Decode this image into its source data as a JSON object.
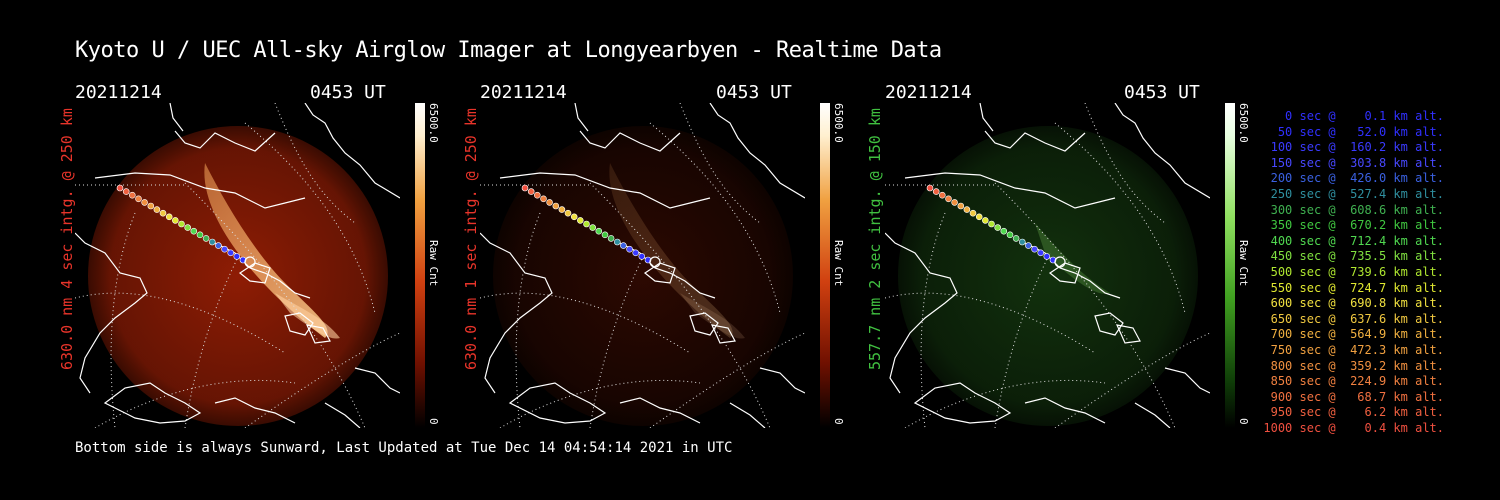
{
  "title": "Kyoto U / UEC All-sky Airglow Imager at Longyearbyen - Realtime Data",
  "footer": "Bottom side is always Sunward, Last Updated at Tue Dec 14 04:54:14 2021 in UTC",
  "panels": [
    {
      "date": "20211214",
      "time": "0453 UT",
      "ylabel": "630.0 nm 4 sec intg. @ 250 km",
      "ylabel_color": "#e8342a",
      "cbar_max": "6500.0",
      "cbar_label": "Raw Cnt",
      "cbar_min": "0",
      "glow": "red",
      "intensity": 0.85
    },
    {
      "date": "20211214",
      "time": "0453 UT",
      "ylabel": "630.0 nm 1 sec intg. @ 250 km",
      "ylabel_color": "#e8342a",
      "cbar_max": "6500.0",
      "cbar_label": "Raw Cnt",
      "cbar_min": "0",
      "glow": "red",
      "intensity": 0.2
    },
    {
      "date": "20211214",
      "time": "0453 UT",
      "ylabel": "557.7 nm 2 sec intg. @ 150 km",
      "ylabel_color": "#40c040",
      "cbar_max": "6500.0",
      "cbar_label": "Raw Cnt",
      "cbar_min": "0",
      "glow": "green",
      "intensity": 0.35
    }
  ],
  "legend": [
    {
      "text": "0 sec @    0.1 km alt.",
      "color": "#3030ff"
    },
    {
      "text": "50 sec @   52.0 km alt.",
      "color": "#3030ff"
    },
    {
      "text": "100 sec @  160.2 km alt.",
      "color": "#3a3aff"
    },
    {
      "text": "150 sec @  303.8 km alt.",
      "color": "#4848ff"
    },
    {
      "text": "200 sec @  426.0 km alt.",
      "color": "#3a60e0"
    },
    {
      "text": "250 sec @  527.4 km alt.",
      "color": "#2f8f9f"
    },
    {
      "text": "300 sec @  608.6 km alt.",
      "color": "#3fb050"
    },
    {
      "text": "350 sec @  670.2 km alt.",
      "color": "#40c840"
    },
    {
      "text": "400 sec @  712.4 km alt.",
      "color": "#50d850"
    },
    {
      "text": "450 sec @  735.5 km alt.",
      "color": "#80e040"
    },
    {
      "text": "500 sec @  739.6 km alt.",
      "color": "#b0e830"
    },
    {
      "text": "550 sec @  724.7 km alt.",
      "color": "#e0e830"
    },
    {
      "text": "600 sec @  690.8 km alt.",
      "color": "#f0e040"
    },
    {
      "text": "650 sec @  637.6 km alt.",
      "color": "#f0c840"
    },
    {
      "text": "700 sec @  564.9 km alt.",
      "color": "#f0b040"
    },
    {
      "text": "750 sec @  472.3 km alt.",
      "color": "#f0a040"
    },
    {
      "text": "800 sec @  359.2 km alt.",
      "color": "#f09040"
    },
    {
      "text": "850 sec @  224.9 km alt.",
      "color": "#f08040"
    },
    {
      "text": "900 sec @   68.7 km alt.",
      "color": "#f07040"
    },
    {
      "text": "950 sec @    6.2 km alt.",
      "color": "#f06040"
    },
    {
      "text": "1000 sec @    0.4 km alt.",
      "color": "#f05040"
    }
  ]
}
